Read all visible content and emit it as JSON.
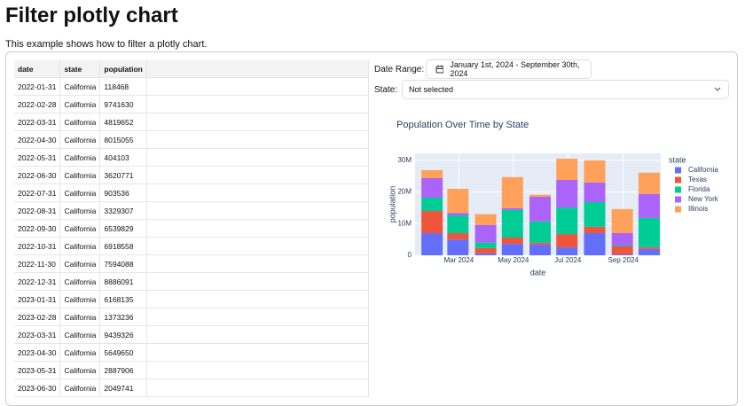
{
  "header": {
    "title": "Filter plotly chart",
    "description": "This example shows how to filter a plotly chart."
  },
  "table": {
    "columns": [
      "date",
      "state",
      "population"
    ],
    "rows": [
      [
        "2022-01-31",
        "California",
        118468
      ],
      [
        "2022-02-28",
        "California",
        9741630
      ],
      [
        "2022-03-31",
        "California",
        4819652
      ],
      [
        "2022-04-30",
        "California",
        8015055
      ],
      [
        "2022-05-31",
        "California",
        404103
      ],
      [
        "2022-06-30",
        "California",
        3620771
      ],
      [
        "2022-07-31",
        "California",
        903536
      ],
      [
        "2022-08-31",
        "California",
        3329307
      ],
      [
        "2022-09-30",
        "California",
        6539829
      ],
      [
        "2022-10-31",
        "California",
        6918558
      ],
      [
        "2022-11-30",
        "California",
        7594088
      ],
      [
        "2022-12-31",
        "California",
        8886091
      ],
      [
        "2023-01-31",
        "California",
        6168135
      ],
      [
        "2023-02-28",
        "California",
        1373236
      ],
      [
        "2023-03-31",
        "California",
        9439326
      ],
      [
        "2023-04-30",
        "California",
        5649650
      ],
      [
        "2023-05-31",
        "California",
        2887906
      ],
      [
        "2023-06-30",
        "California",
        2049741
      ]
    ]
  },
  "filters": {
    "date_label": "Date Range:",
    "date_value": "January 1st, 2024 - September 30th, 2024",
    "state_label": "State:",
    "state_value": "Not selected"
  },
  "chart_data": {
    "type": "bar",
    "stacked": true,
    "title": "Population Over Time by State",
    "x_label": "date",
    "y_label": "population",
    "legend_title": "state",
    "x": [
      "2024-01-31",
      "2024-02-29",
      "2024-03-31",
      "2024-04-30",
      "2024-05-31",
      "2024-06-30",
      "2024-07-31",
      "2024-08-31",
      "2024-09-30"
    ],
    "xlim": [
      "2024-01-12",
      "2024-10-13"
    ],
    "xticks": [
      {
        "value": "2024-03-01",
        "label": "Mar 2024"
      },
      {
        "value": "2024-05-01",
        "label": "May 2024"
      },
      {
        "value": "2024-07-01",
        "label": "Jul 2024"
      },
      {
        "value": "2024-09-01",
        "label": "Sep 2024"
      }
    ],
    "ylim": [
      0,
      32200000
    ],
    "yticks": [
      0,
      {
        "value": 10000000,
        "label": "10M"
      },
      {
        "value": 20000000,
        "label": "20M"
      },
      {
        "value": 30000000,
        "label": "30M"
      }
    ],
    "grid": true,
    "series": [
      {
        "name": "California",
        "color": "#636efa",
        "values": [
          7000000,
          5000000,
          600000,
          3600000,
          3400000,
          2500000,
          7000000,
          300000,
          2000000
        ]
      },
      {
        "name": "Texas",
        "color": "#ef553b",
        "values": [
          7000000,
          2000000,
          1700000,
          2000000,
          600000,
          4200000,
          2000000,
          2500000,
          600000
        ]
      },
      {
        "name": "Florida",
        "color": "#00cc96",
        "values": [
          4200000,
          5600000,
          1700000,
          8700000,
          6700000,
          8400000,
          7800000,
          300000,
          9200000
        ]
      },
      {
        "name": "New York",
        "color": "#ab63fa",
        "values": [
          6200000,
          800000,
          5600000,
          600000,
          7800000,
          8700000,
          6200000,
          3900000,
          7600000
        ]
      },
      {
        "name": "Illinois",
        "color": "#ffa15a",
        "values": [
          2500000,
          7600000,
          3400000,
          9800000,
          600000,
          6700000,
          7000000,
          7600000,
          6700000
        ]
      }
    ]
  }
}
